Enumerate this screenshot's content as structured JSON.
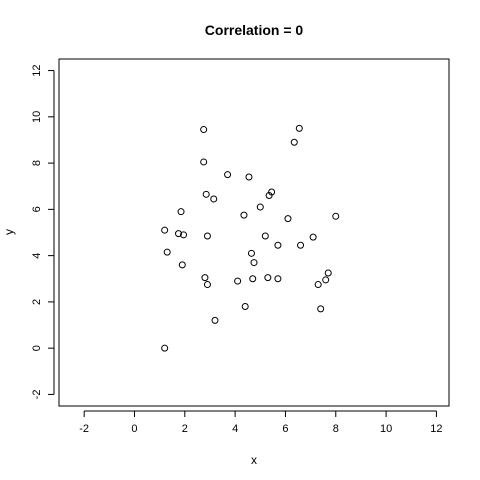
{
  "chart_data": {
    "type": "scatter",
    "title": "Correlation = 0",
    "xlabel": "x",
    "ylabel": "y",
    "xlim": [
      -3,
      12.5
    ],
    "ylim": [
      -2.5,
      12.5
    ],
    "xticks": [
      -2,
      0,
      2,
      4,
      6,
      8,
      10,
      12
    ],
    "yticks": [
      -2,
      0,
      2,
      4,
      6,
      8,
      10,
      12
    ],
    "grid": false,
    "points": [
      {
        "x": 1.2,
        "y": 0.0
      },
      {
        "x": 3.2,
        "y": 1.2
      },
      {
        "x": 4.4,
        "y": 1.8
      },
      {
        "x": 7.4,
        "y": 1.7
      },
      {
        "x": 2.9,
        "y": 2.75
      },
      {
        "x": 4.1,
        "y": 2.9
      },
      {
        "x": 2.8,
        "y": 3.05
      },
      {
        "x": 4.7,
        "y": 3.0
      },
      {
        "x": 5.3,
        "y": 3.05
      },
      {
        "x": 5.7,
        "y": 3.0
      },
      {
        "x": 7.3,
        "y": 2.75
      },
      {
        "x": 7.6,
        "y": 2.95
      },
      {
        "x": 7.7,
        "y": 3.25
      },
      {
        "x": 1.9,
        "y": 3.6
      },
      {
        "x": 4.75,
        "y": 3.7
      },
      {
        "x": 1.3,
        "y": 4.15
      },
      {
        "x": 4.65,
        "y": 4.1
      },
      {
        "x": 5.7,
        "y": 4.45
      },
      {
        "x": 6.6,
        "y": 4.45
      },
      {
        "x": 1.2,
        "y": 5.1
      },
      {
        "x": 1.75,
        "y": 4.95
      },
      {
        "x": 1.95,
        "y": 4.9
      },
      {
        "x": 2.9,
        "y": 4.85
      },
      {
        "x": 5.2,
        "y": 4.85
      },
      {
        "x": 7.1,
        "y": 4.8
      },
      {
        "x": 1.85,
        "y": 5.9
      },
      {
        "x": 4.35,
        "y": 5.75
      },
      {
        "x": 6.1,
        "y": 5.6
      },
      {
        "x": 8.0,
        "y": 5.7
      },
      {
        "x": 5.0,
        "y": 6.1
      },
      {
        "x": 3.15,
        "y": 6.45
      },
      {
        "x": 2.85,
        "y": 6.65
      },
      {
        "x": 5.35,
        "y": 6.6
      },
      {
        "x": 5.45,
        "y": 6.75
      },
      {
        "x": 3.7,
        "y": 7.5
      },
      {
        "x": 4.55,
        "y": 7.4
      },
      {
        "x": 2.75,
        "y": 8.05
      },
      {
        "x": 6.35,
        "y": 8.9
      },
      {
        "x": 2.75,
        "y": 9.45
      },
      {
        "x": 6.55,
        "y": 9.5
      }
    ]
  }
}
